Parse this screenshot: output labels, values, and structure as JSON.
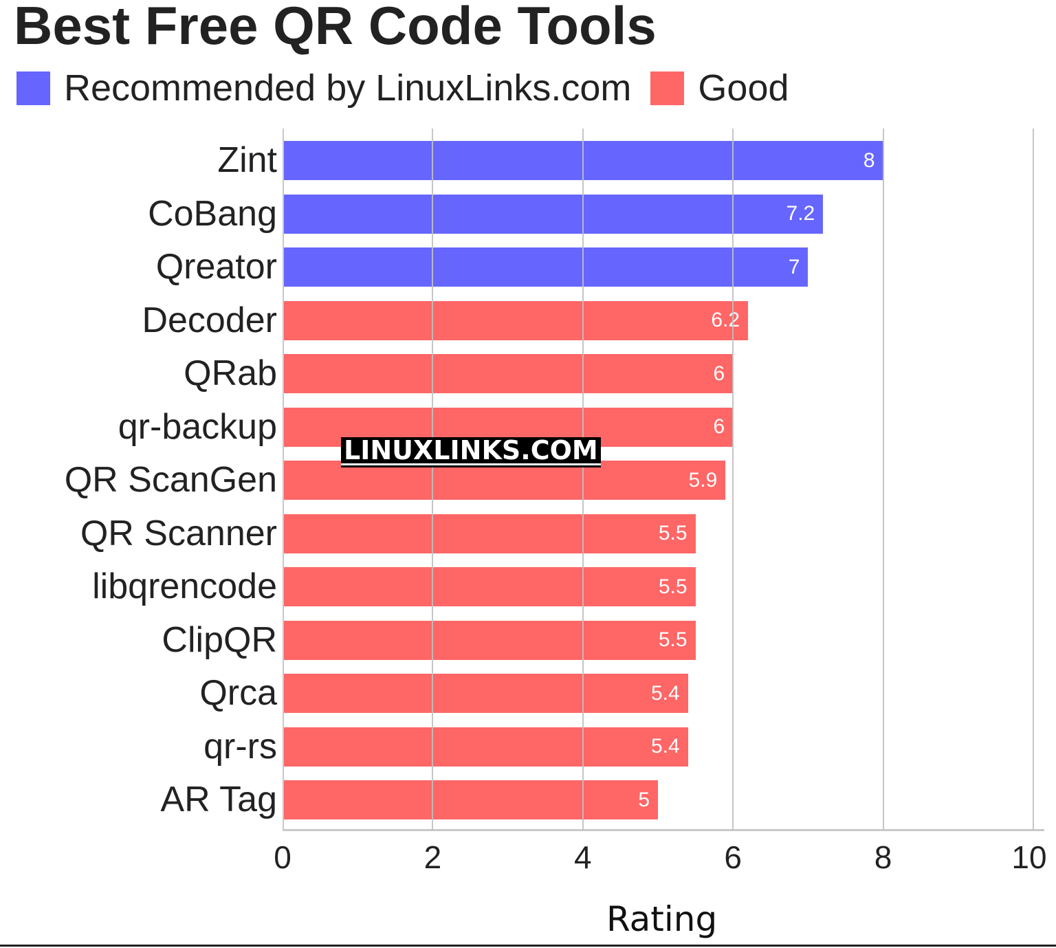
{
  "title": "Best Free QR Code Tools",
  "legend": [
    {
      "label": "Recommended by LinuxLinks.com",
      "color": "#6666ff"
    },
    {
      "label": "Good",
      "color": "#ff6666"
    }
  ],
  "watermark": "LINUXLINKS.COM",
  "xaxis": {
    "label": "Rating",
    "ticks": [
      "0",
      "2",
      "4",
      "6",
      "8",
      "10"
    ]
  },
  "chart_data": {
    "type": "bar",
    "orientation": "horizontal",
    "title": "Best Free QR Code Tools",
    "xlabel": "Rating",
    "ylabel": "",
    "xlim": [
      0,
      10
    ],
    "grid": true,
    "legend_position": "top-left",
    "categories": [
      "Zint",
      "CoBang",
      "Qreator",
      "Decoder",
      "QRab",
      "qr-backup",
      "QR ScanGen",
      "QR Scanner",
      "libqrencode",
      "ClipQR",
      "Qrca",
      "qr-rs",
      "AR Tag"
    ],
    "values": [
      8,
      7.2,
      7,
      6.2,
      6,
      6,
      5.9,
      5.5,
      5.5,
      5.5,
      5.4,
      5.4,
      5
    ],
    "groups": [
      "Recommended by LinuxLinks.com",
      "Recommended by LinuxLinks.com",
      "Recommended by LinuxLinks.com",
      "Good",
      "Good",
      "Good",
      "Good",
      "Good",
      "Good",
      "Good",
      "Good",
      "Good",
      "Good"
    ],
    "value_labels": [
      "8",
      "7.2",
      "7",
      "6.2",
      "6",
      "6",
      "5.9",
      "5.5",
      "5.5",
      "5.5",
      "5.4",
      "5.4",
      "5"
    ],
    "colors": {
      "Recommended by LinuxLinks.com": "#6666ff",
      "Good": "#ff6666"
    }
  }
}
